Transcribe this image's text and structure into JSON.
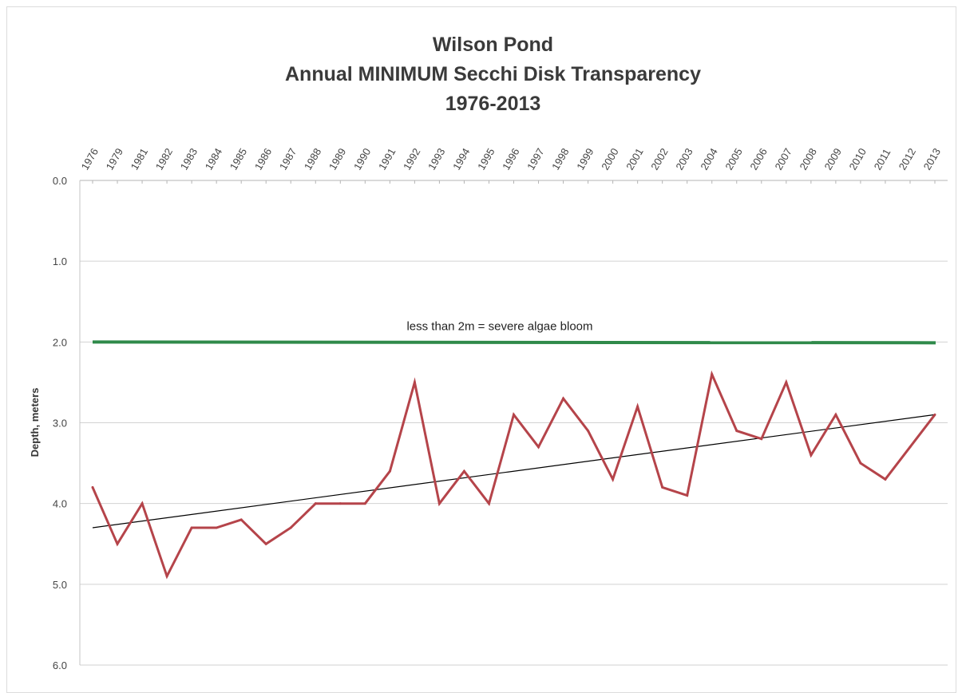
{
  "chart_data": {
    "type": "line",
    "title_lines": [
      "Wilson Pond",
      "Annual MINIMUM Secchi Disk Transparency",
      "1976-2013"
    ],
    "xlabel": "",
    "ylabel": "Depth, meters",
    "categories": [
      "1976",
      "1979",
      "1981",
      "1982",
      "1983",
      "1984",
      "1985",
      "1986",
      "1987",
      "1988",
      "1989",
      "1990",
      "1991",
      "1992",
      "1993",
      "1994",
      "1995",
      "1996",
      "1997",
      "1998",
      "1999",
      "2000",
      "2001",
      "2002",
      "2003",
      "2004",
      "2005",
      "2006",
      "2007",
      "2008",
      "2009",
      "2010",
      "2011",
      "2012",
      "2013"
    ],
    "series": [
      {
        "values": [
          3.8,
          4.5,
          4.0,
          4.9,
          4.3,
          4.3,
          4.2,
          4.5,
          4.3,
          4.0,
          4.0,
          4.0,
          3.6,
          2.5,
          4.0,
          3.6,
          4.0,
          2.9,
          3.3,
          2.7,
          3.1,
          3.7,
          2.8,
          3.8,
          3.9,
          2.4,
          3.1,
          3.2,
          2.5,
          3.4,
          2.9,
          3.5,
          3.7,
          3.3,
          2.9
        ],
        "color": "#b5444a"
      }
    ],
    "trendline": {
      "start": 4.3,
      "end": 2.9,
      "color": "#000000"
    },
    "threshold": {
      "value": 2.0,
      "label": "less than 2m = severe algae bloom",
      "color": "#2f8a4a"
    },
    "y_axis": {
      "ylim": [
        0,
        6
      ],
      "reversed": true,
      "ticks": [
        "0.0",
        "1.0",
        "2.0",
        "3.0",
        "4.0",
        "5.0",
        "6.0"
      ],
      "grid": true
    },
    "x_axis": {
      "position": "top",
      "label_rotation": "diagonal"
    }
  }
}
